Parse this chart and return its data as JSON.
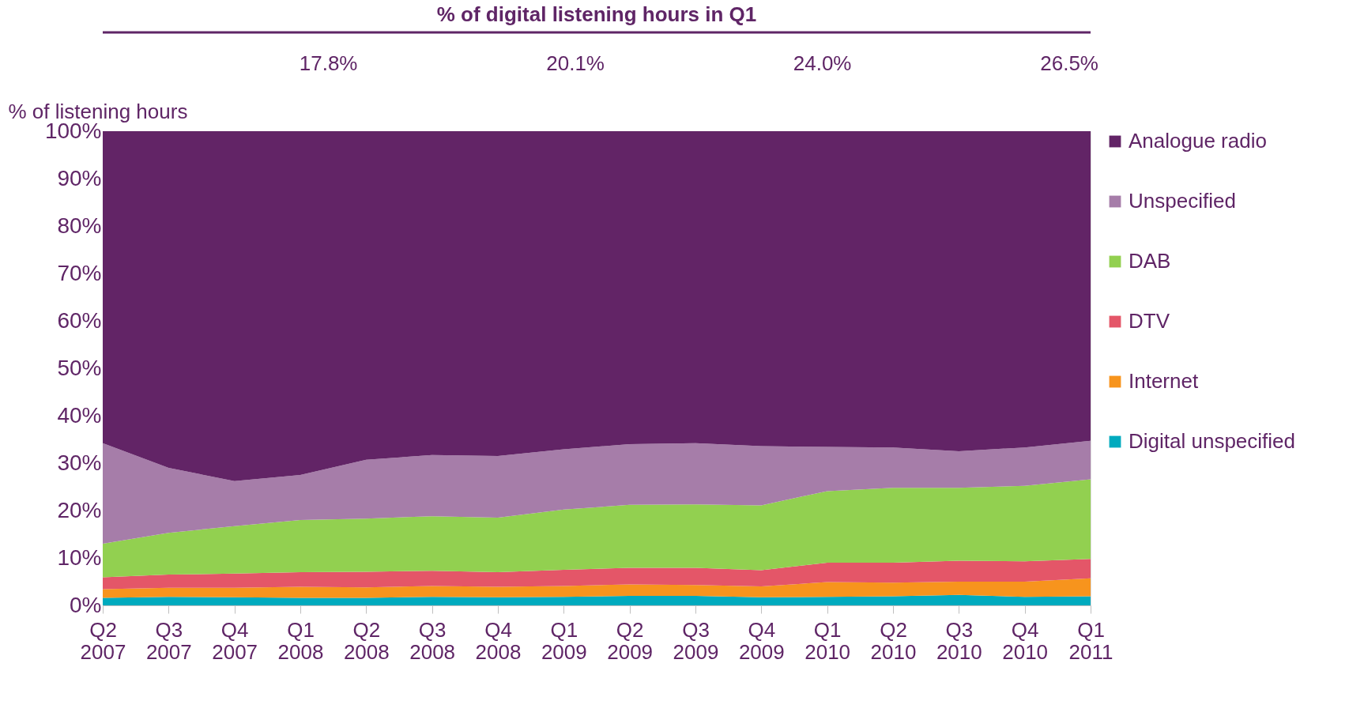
{
  "chart_data": {
    "type": "area",
    "stacked": true,
    "title": "% of digital listening hours in Q1",
    "ylabel": "% of listening hours",
    "categories": [
      "Q2 2007",
      "Q3 2007",
      "Q4 2007",
      "Q1 2008",
      "Q2 2008",
      "Q3 2008",
      "Q4 2008",
      "Q1 2009",
      "Q2 2009",
      "Q3 2009",
      "Q4 2009",
      "Q1 2010",
      "Q2 2010",
      "Q3 2010",
      "Q4 2010",
      "Q1 2011"
    ],
    "series": [
      {
        "name": "Digital unspecified",
        "color": "#00aabe",
        "values": [
          1.6,
          1.8,
          1.7,
          1.6,
          1.6,
          1.8,
          1.7,
          1.8,
          2.0,
          2.0,
          1.7,
          1.8,
          1.9,
          2.2,
          1.8,
          1.9
        ]
      },
      {
        "name": "Internet",
        "color": "#f7941d",
        "values": [
          1.8,
          1.9,
          2.0,
          2.3,
          2.2,
          2.3,
          2.2,
          2.3,
          2.4,
          2.3,
          2.3,
          3.1,
          2.9,
          2.8,
          3.2,
          3.8
        ]
      },
      {
        "name": "DTV",
        "color": "#e45668",
        "values": [
          2.5,
          2.8,
          3.0,
          3.1,
          3.3,
          3.2,
          3.1,
          3.4,
          3.5,
          3.6,
          3.4,
          4.1,
          4.2,
          4.4,
          4.3,
          4.1
        ]
      },
      {
        "name": "DAB",
        "color": "#92d050",
        "values": [
          7.1,
          8.8,
          10.0,
          11.0,
          11.2,
          11.5,
          11.5,
          12.7,
          13.3,
          13.4,
          13.7,
          15.1,
          15.8,
          15.4,
          15.9,
          16.8
        ]
      },
      {
        "name": "Unspecified",
        "color": "#a67da9",
        "values": [
          21.2,
          13.7,
          9.5,
          9.5,
          12.4,
          12.9,
          13.0,
          12.7,
          12.8,
          12.9,
          12.5,
          9.3,
          8.5,
          7.7,
          8.1,
          8.1
        ]
      },
      {
        "name": "Analogue radio",
        "color": "#622466",
        "values": [
          65.8,
          71.0,
          73.8,
          72.5,
          69.3,
          68.3,
          68.5,
          67.1,
          66.0,
          65.8,
          66.4,
          66.6,
          66.7,
          67.5,
          66.7,
          65.3
        ]
      }
    ],
    "ylim": [
      0,
      100
    ],
    "yticks": [
      {
        "value": 0,
        "label": "0%"
      },
      {
        "value": 10,
        "label": "10%"
      },
      {
        "value": 20,
        "label": "20%"
      },
      {
        "value": 30,
        "label": "30%"
      },
      {
        "value": 40,
        "label": "40%"
      },
      {
        "value": 50,
        "label": "50%"
      },
      {
        "value": 60,
        "label": "60%"
      },
      {
        "value": 70,
        "label": "70%"
      },
      {
        "value": 80,
        "label": "80%"
      },
      {
        "value": 90,
        "label": "90%"
      },
      {
        "value": 100,
        "label": "100%"
      }
    ],
    "annotations": [
      "17.8%",
      "20.1%",
      "24.0%",
      "26.5%"
    ],
    "legend": "right"
  }
}
